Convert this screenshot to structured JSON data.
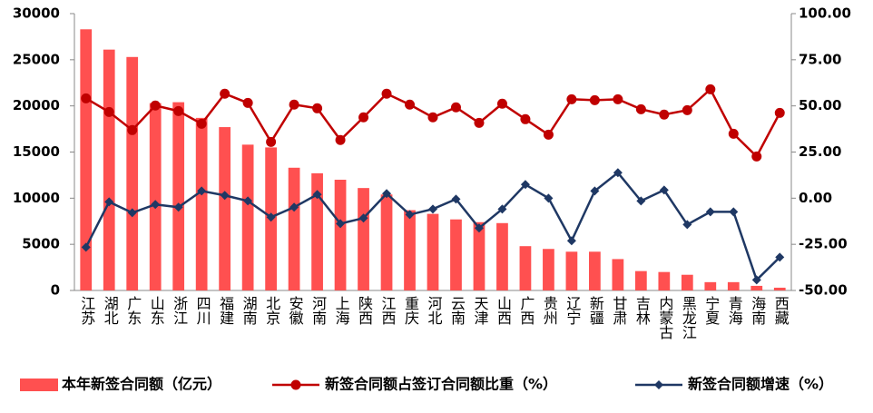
{
  "chart_data": {
    "type": "bar",
    "categories": [
      "江苏",
      "湖北",
      "广东",
      "山东",
      "浙江",
      "四川",
      "福建",
      "湖南",
      "北京",
      "安徽",
      "河南",
      "上海",
      "陕西",
      "江西",
      "重庆",
      "河北",
      "云南",
      "天津",
      "山西",
      "广西",
      "贵州",
      "辽宁",
      "新疆",
      "甘肃",
      "吉林",
      "内蒙古",
      "黑龙江",
      "宁夏",
      "青海",
      "海南",
      "西藏"
    ],
    "series": [
      {
        "name": "本年新签合同额（亿元）",
        "type": "bar",
        "color": "#ff5050",
        "values": [
          28300,
          26100,
          25300,
          20300,
          20400,
          18700,
          17700,
          15800,
          15500,
          13300,
          12700,
          12000,
          11100,
          10400,
          8700,
          8300,
          7700,
          7400,
          7300,
          4800,
          4500,
          4200,
          4200,
          3400,
          2100,
          2000,
          1700,
          900,
          900,
          500,
          300
        ]
      },
      {
        "name": "新签合同额占签订合同额比重（%）",
        "type": "line",
        "axis": "y2",
        "color": "#c00000",
        "values": [
          54.1,
          46.7,
          36.9,
          50.2,
          47.2,
          40.3,
          56.6,
          51.6,
          30.5,
          50.7,
          48.7,
          31.5,
          43.8,
          56.6,
          50.7,
          43.8,
          49.2,
          40.8,
          51.2,
          42.8,
          34.4,
          53.6,
          53.1,
          53.6,
          48.2,
          45.3,
          47.7,
          59.0,
          34.9,
          22.6,
          46.2
        ]
      },
      {
        "name": "新签合同额增速（%）",
        "type": "line",
        "axis": "y2",
        "color": "#1f3864",
        "values": [
          -26.6,
          -2.0,
          -7.9,
          -3.4,
          -4.9,
          3.9,
          1.5,
          -1.5,
          -10.3,
          -4.9,
          2.0,
          -13.8,
          -10.8,
          2.5,
          -8.9,
          -5.9,
          -0.5,
          -16.2,
          -5.9,
          7.4,
          0.0,
          -23.1,
          3.9,
          13.8,
          -1.5,
          4.4,
          -14.3,
          -7.4,
          -7.4,
          -44.3,
          -32.0
        ]
      }
    ],
    "ylim": [
      0,
      30000
    ],
    "yticks": [
      0,
      5000,
      10000,
      15000,
      20000,
      25000,
      30000
    ],
    "y2lim": [
      -50,
      100
    ],
    "y2ticks": [
      {
        "value": -50,
        "label": "-50.00"
      },
      {
        "value": -25,
        "label": "-25.00"
      },
      {
        "value": 0,
        "label": "0.00"
      },
      {
        "value": 25,
        "label": "25.00"
      },
      {
        "value": 50,
        "label": "50.00"
      },
      {
        "value": 75,
        "label": "75.00"
      },
      {
        "value": 100,
        "label": "100.00"
      }
    ],
    "grid": false,
    "legend": "bottom"
  }
}
